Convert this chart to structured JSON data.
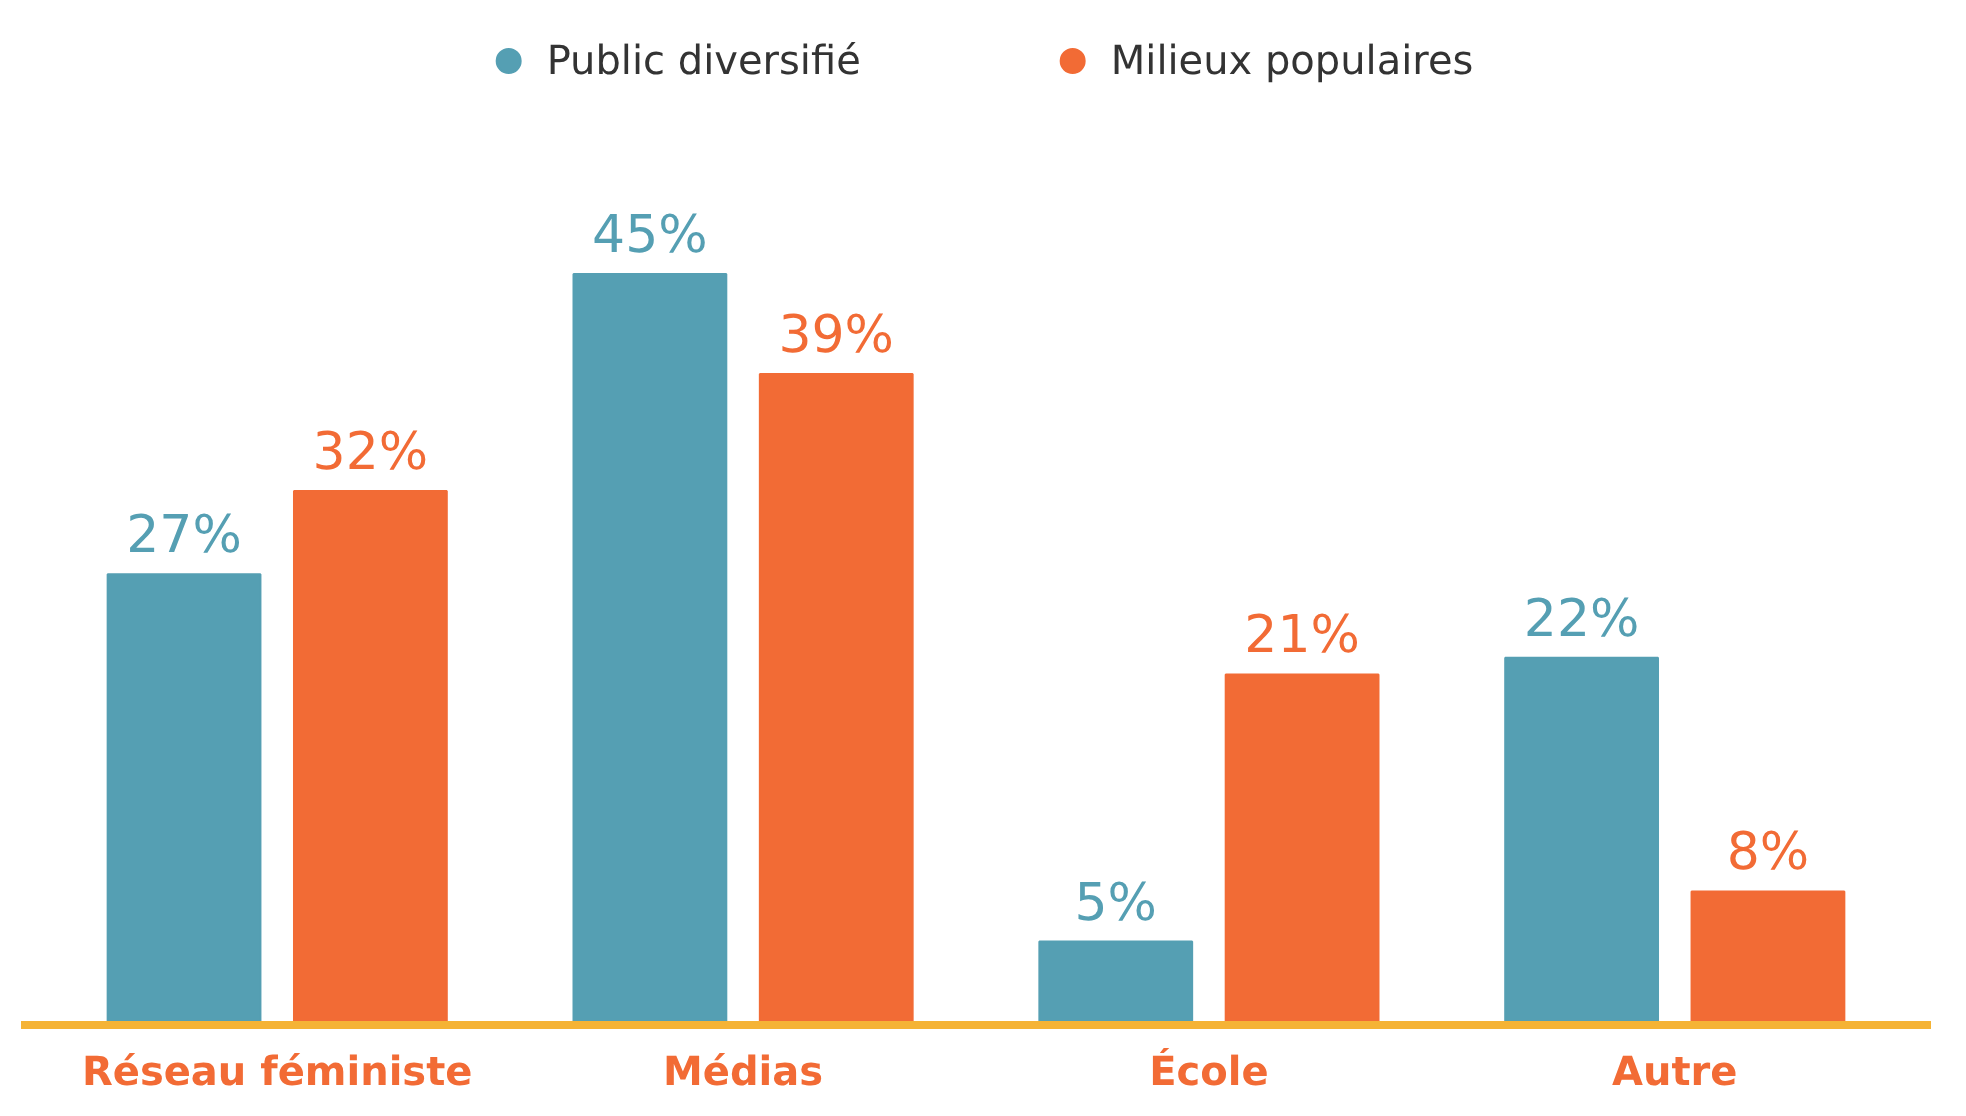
{
  "chart_data": {
    "type": "bar",
    "categories": [
      "Réseau féministe",
      "Médias",
      "École",
      "Autre"
    ],
    "series": [
      {
        "name": "Public diversifié",
        "color": "#559fb3",
        "values": [
          27,
          45,
          5,
          22
        ],
        "value_labels": [
          "27%",
          "45%",
          "5%",
          "22%"
        ]
      },
      {
        "name": "Milieux populaires",
        "color": "#f26b35",
        "values": [
          32,
          39,
          21,
          8
        ],
        "value_labels": [
          "32%",
          "39%",
          "21%",
          "8%"
        ]
      }
    ],
    "legend": "top",
    "tick_labels": "x"
  }
}
